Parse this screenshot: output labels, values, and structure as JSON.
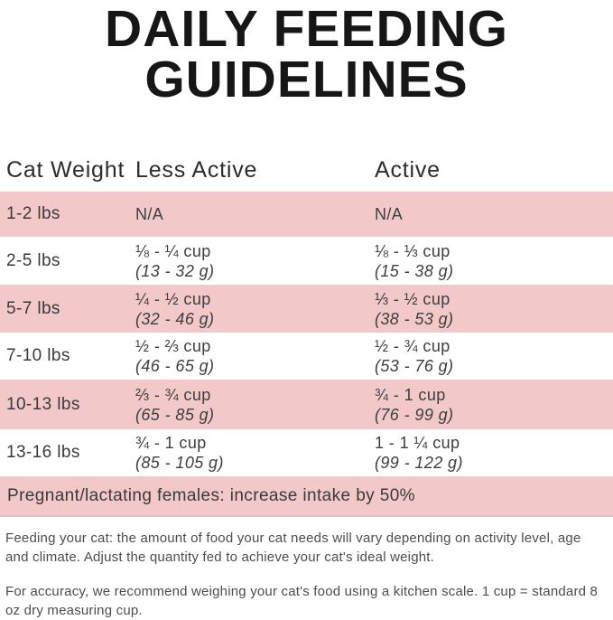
{
  "title": {
    "line1": "DAILY FEEDING",
    "line2": "GUIDELINES"
  },
  "table": {
    "headers": [
      "Cat Weight",
      "Less Active",
      "Active"
    ],
    "rows": [
      {
        "weight": "1-2 lbs",
        "less_active": {
          "cups": "N/A",
          "grams": ""
        },
        "active": {
          "cups": "N/A",
          "grams": ""
        }
      },
      {
        "weight": "2-5 lbs",
        "less_active": {
          "cups": "⅛ - ¼ cup",
          "grams": "(13 - 32 g)"
        },
        "active": {
          "cups": "⅛ - ⅓ cup",
          "grams": "(15 - 38 g)"
        }
      },
      {
        "weight": "5-7 lbs",
        "less_active": {
          "cups": "¼ - ½ cup",
          "grams": "(32 - 46 g)"
        },
        "active": {
          "cups": "⅓ - ½ cup",
          "grams": "(38 - 53 g)"
        }
      },
      {
        "weight": "7-10 lbs",
        "less_active": {
          "cups": "½ - ⅔ cup",
          "grams": "(46 - 65 g)"
        },
        "active": {
          "cups": "½ - ¾ cup",
          "grams": "(53 - 76 g)"
        }
      },
      {
        "weight": "10-13 lbs",
        "less_active": {
          "cups": "⅔ - ¾ cup",
          "grams": "(65 - 85 g)"
        },
        "active": {
          "cups": "¾ - 1 cup",
          "grams": "(76 - 99 g)"
        }
      },
      {
        "weight": "13-16 lbs",
        "less_active": {
          "cups": "¾ - 1 cup",
          "grams": "(85 - 105 g)"
        },
        "active": {
          "cups": "1 - 1 ¼ cup",
          "grams": "(99 - 122 g)"
        }
      }
    ],
    "note_row": "Pregnant/lactating females: increase intake by 50%"
  },
  "footer": {
    "paragraph1": "Feeding your cat: the amount of food your cat needs will vary depending on activity level, age and climate. Adjust the quantity fed to achieve your cat's ideal weight.",
    "paragraph2": "For accuracy, we recommend weighing your cat's food using a kitchen scale. 1 cup = standard 8 oz dry measuring cup."
  },
  "colors": {
    "row_pink": "#f2c8c8",
    "title_text": "#161616",
    "body_text": "#3e3e3e",
    "footer_text": "#4d4d4d"
  }
}
